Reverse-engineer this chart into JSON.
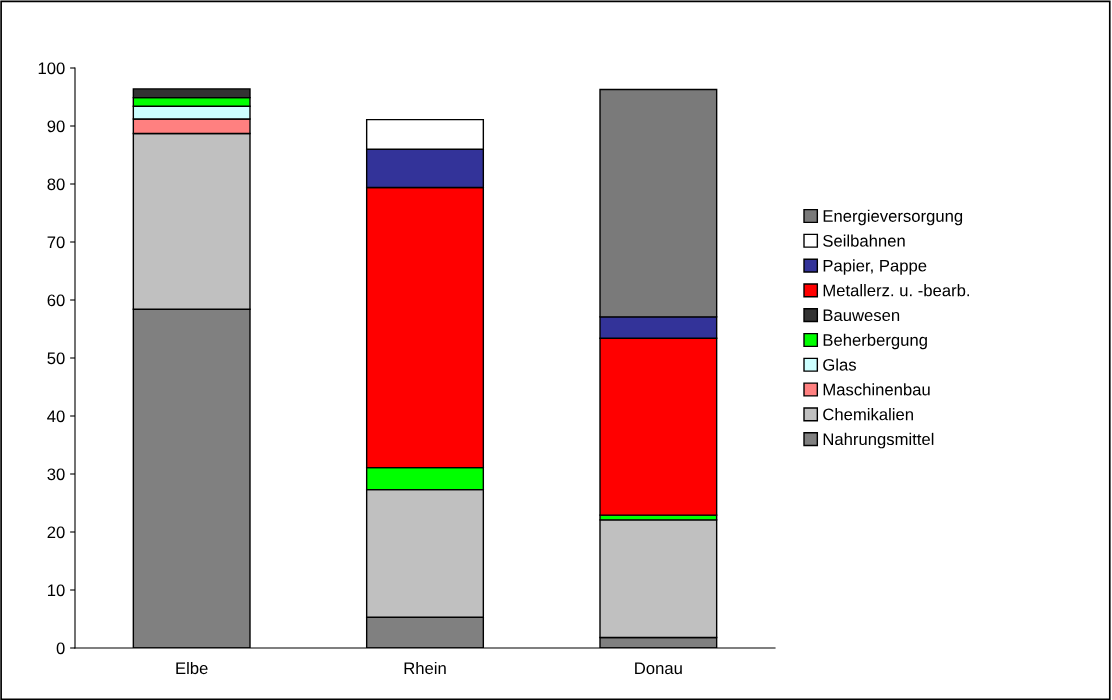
{
  "chart_data": {
    "type": "bar",
    "stacked": true,
    "categories": [
      "Elbe",
      "Rhein",
      "Donau"
    ],
    "series": [
      {
        "name": "Nahrungsmittel",
        "color": "#808080",
        "values": [
          58.4,
          5.3,
          1.8
        ]
      },
      {
        "name": "Chemikalien",
        "color": "#c0c0c0",
        "values": [
          30.3,
          22.0,
          20.3
        ]
      },
      {
        "name": "Maschinenbau",
        "color": "#ff8080",
        "values": [
          2.5,
          null,
          null
        ]
      },
      {
        "name": "Glas",
        "color": "#ccffff",
        "values": [
          2.2,
          null,
          null
        ]
      },
      {
        "name": "Beherbergung",
        "color": "#00ff00",
        "values": [
          1.5,
          3.8,
          0.8
        ]
      },
      {
        "name": "Bauwesen",
        "color": "#333333",
        "values": [
          1.5,
          null,
          null
        ]
      },
      {
        "name": "Metallerz. u. -bearb.",
        "color": "#ff0000",
        "values": [
          null,
          48.3,
          30.5
        ]
      },
      {
        "name": "Papier, Pappe",
        "color": "#333399",
        "values": [
          null,
          6.6,
          3.7
        ]
      },
      {
        "name": "Seilbahnen",
        "color": "#ffffff",
        "values": [
          null,
          5.1,
          null
        ]
      },
      {
        "name": "Energieversorgung",
        "color": "#7a7a7a",
        "values": [
          null,
          null,
          39.2
        ]
      }
    ],
    "ylim": [
      0,
      100
    ],
    "yticks": [
      0,
      10,
      20,
      30,
      40,
      50,
      60,
      70,
      80,
      90,
      100
    ],
    "grid": false,
    "legend": "right"
  }
}
